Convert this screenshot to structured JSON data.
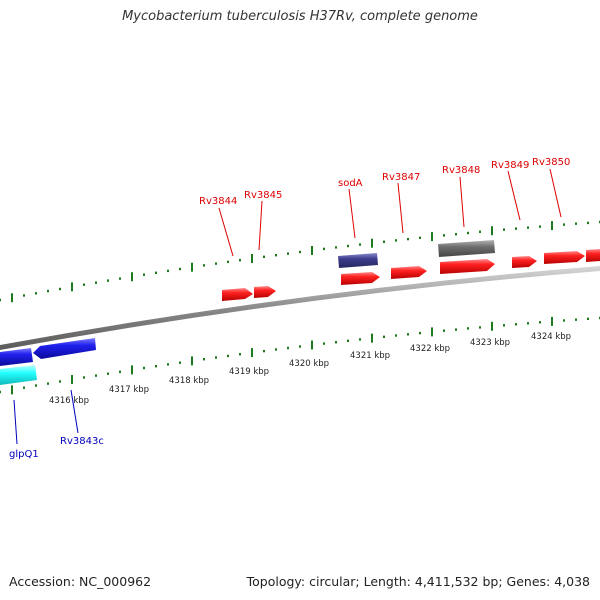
{
  "map": {
    "title": "Mycobacterium tuberculosis H37Rv, complete genome",
    "accession": "Accession: NC_000962",
    "summary": "Topology: circular; Length: 4,411,532 bp; Genes: 4,038",
    "colors": {
      "genome_line": "#8a8a8a",
      "tick": "#1e7a1e",
      "forward_gene": "#ee1111",
      "reverse_gene": "#1a1ae6",
      "cyan_gene": "#22ffff",
      "dark_blue_gene": "#3c3c8c",
      "gray_gene": "#6e6e6e",
      "forward_label": "#dd0000",
      "reverse_label": "#0000bb"
    },
    "scale_labels": [
      "4316 kbp",
      "4317 kbp",
      "4318 kbp",
      "4319 kbp",
      "4320 kbp",
      "4321 kbp",
      "4322 kbp",
      "4323 kbp",
      "4324 kbp"
    ],
    "forward_labels": [
      "Rv3844",
      "Rv3845",
      "sodA",
      "Rv3847",
      "Rv3848",
      "Rv3849",
      "Rv3850"
    ],
    "reverse_labels": [
      "glpQ1",
      "Rv3843c"
    ]
  }
}
